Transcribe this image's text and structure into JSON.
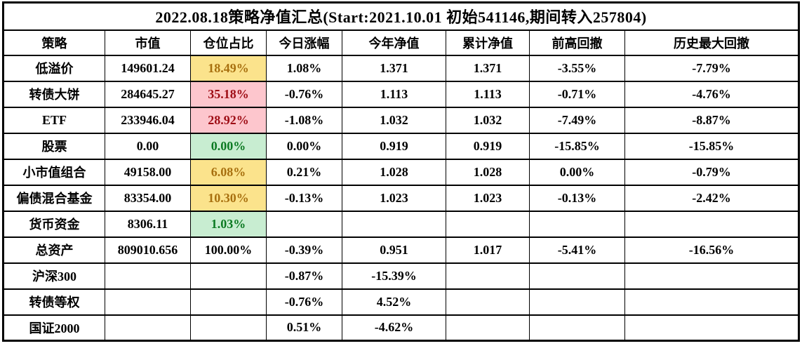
{
  "colors": {
    "border": "#000000",
    "highlight_yellow_bg": "#FBE38C",
    "highlight_yellow_text": "#A8700F",
    "highlight_red_bg": "#FDC6CD",
    "highlight_red_text": "#9E0D15",
    "highlight_green_bg": "#C8EDD1",
    "highlight_green_text": "#0C7A22"
  },
  "chart_data": {
    "type": "table",
    "title": "2022.08.18策略净值汇总(Start:2021.10.01 初始541146,期间转入257804)",
    "columns": [
      "策略",
      "市值",
      "仓位占比",
      "今日涨幅",
      "今年净值",
      "累计净值",
      "前高回撤",
      "历史最大回撤"
    ],
    "rows": [
      {
        "cells": [
          "低溢价",
          "149601.24",
          "18.49%",
          "1.08%",
          "1.371",
          "1.371",
          "-3.55%",
          "-7.79%"
        ],
        "position_highlight": "yellow"
      },
      {
        "cells": [
          "转债大饼",
          "284645.27",
          "35.18%",
          "-0.76%",
          "1.113",
          "1.113",
          "-0.71%",
          "-4.76%"
        ],
        "position_highlight": "red"
      },
      {
        "cells": [
          "ETF",
          "233946.04",
          "28.92%",
          "-1.08%",
          "1.032",
          "1.032",
          "-7.49%",
          "-8.87%"
        ],
        "position_highlight": "red"
      },
      {
        "cells": [
          "股票",
          "0.00",
          "0.00%",
          "0.00%",
          "0.919",
          "0.919",
          "-15.85%",
          "-15.85%"
        ],
        "position_highlight": "green"
      },
      {
        "cells": [
          "小市值组合",
          "49158.00",
          "6.08%",
          "0.21%",
          "1.028",
          "1.028",
          "0.00%",
          "-0.79%"
        ],
        "position_highlight": "yellow"
      },
      {
        "cells": [
          "偏债混合基金",
          "83354.00",
          "10.30%",
          "-0.13%",
          "1.023",
          "1.023",
          "-0.13%",
          "-2.42%"
        ],
        "position_highlight": "yellow"
      },
      {
        "cells": [
          "货币资金",
          "8306.11",
          "1.03%",
          "",
          "",
          "",
          "",
          ""
        ],
        "position_highlight": "green"
      },
      {
        "cells": [
          "总资产",
          "809010.656",
          "100.00%",
          "-0.39%",
          "0.951",
          "1.017",
          "-5.41%",
          "-16.56%"
        ],
        "position_highlight": "none"
      },
      {
        "cells": [
          "沪深300",
          "",
          "",
          "-0.87%",
          "-15.39%",
          "",
          "",
          ""
        ],
        "position_highlight": "none"
      },
      {
        "cells": [
          "转债等权",
          "",
          "",
          "-0.76%",
          "4.52%",
          "",
          "",
          ""
        ],
        "position_highlight": "none"
      },
      {
        "cells": [
          "国证2000",
          "",
          "",
          "0.51%",
          "-4.62%",
          "",
          "",
          ""
        ],
        "position_highlight": "none"
      }
    ]
  }
}
